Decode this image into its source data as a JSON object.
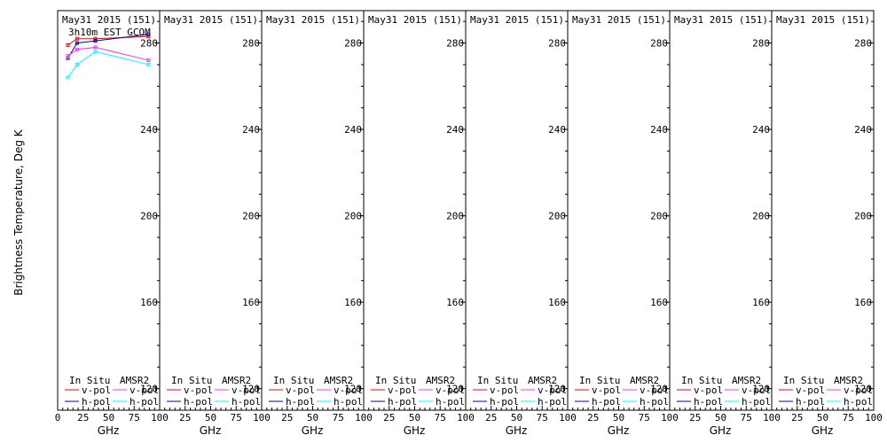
{
  "chart_data": {
    "type": "line",
    "ylabel": "Brightness Temperature, Deg K",
    "xlabel": "GHz",
    "ylim": [
      110,
      295
    ],
    "xlim": [
      0,
      100
    ],
    "yticks": [
      120,
      160,
      200,
      240,
      280
    ],
    "yticks_text": [
      "120",
      "160",
      "200",
      "240",
      "280"
    ],
    "xticks": [
      0,
      25,
      50,
      75,
      100
    ],
    "xticks_text_first": [
      "0",
      "25",
      "50",
      "75",
      "100"
    ],
    "xticks_text_rest": [
      "25",
      "50",
      "75",
      "100"
    ],
    "legend": {
      "in_situ": "In Situ",
      "amsr2": "AMSR2",
      "vpol": "v-pol",
      "hpol": "h-pol"
    },
    "colors": {
      "insitu_v": "#ff0000",
      "insitu_h": "#0000aa",
      "amsr2_v": "#ff33ff",
      "amsr2_h": "#00ffff"
    },
    "panels": [
      {
        "title": "May31 2015 (151)",
        "subtitle": "3h10m EST GCOM",
        "series": [
          {
            "name": "In Situ v-pol",
            "key": "insitu_v",
            "x": [
              10,
              19,
              37,
              89
            ],
            "y": [
              279,
              282,
              282,
              283
            ]
          },
          {
            "name": "In Situ h-pol",
            "key": "insitu_h",
            "x": [
              10,
              19,
              37,
              89
            ],
            "y": [
              273,
              280,
              281,
              284
            ]
          },
          {
            "name": "AMSR2 v-pol",
            "key": "amsr2_v",
            "x": [
              10,
              19,
              37,
              89
            ],
            "y": [
              274,
              277,
              278,
              272
            ]
          },
          {
            "name": "AMSR2 h-pol",
            "key": "amsr2_h",
            "x": [
              10,
              19,
              37,
              89
            ],
            "y": [
              264,
              270,
              276,
              270
            ]
          }
        ]
      },
      {
        "title": "May31 2015 (151)",
        "subtitle": "",
        "series": []
      },
      {
        "title": "May31 2015 (151)",
        "subtitle": "",
        "series": []
      },
      {
        "title": "May31 2015 (151)",
        "subtitle": "",
        "series": []
      },
      {
        "title": "May31 2015 (151)",
        "subtitle": "",
        "series": []
      },
      {
        "title": "May31 2015 (151)",
        "subtitle": "",
        "series": []
      },
      {
        "title": "May31 2015 (151)",
        "subtitle": "",
        "series": []
      },
      {
        "title": "May31 2015 (151)",
        "subtitle": "",
        "series": []
      }
    ]
  }
}
